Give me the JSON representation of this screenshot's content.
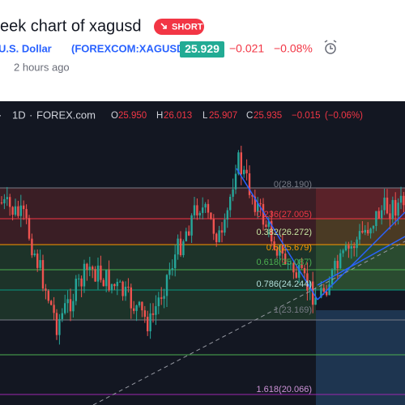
{
  "header": {
    "title": "eek chart of xagusd",
    "badge": "SHORT",
    "symbol_name": "U.S. Dollar",
    "symbol_code": "(FOREXCOM:XAGUSD)",
    "price": "25.929",
    "change": "−0.021",
    "change_pct": "−0.08%",
    "time": "2 hours ago"
  },
  "toolbar": {
    "interval": "1D",
    "source": "FOREX.com",
    "open_label": "O",
    "open": "25.950",
    "high_label": "H",
    "high": "26.013",
    "low_label": "L",
    "low": "25.907",
    "close_label": "C",
    "close": "25.935",
    "change": "−0.015",
    "change_pct": "(−0.06%)"
  },
  "fib_levels": [
    "0(28.190)",
    "0.236(27.005)",
    "0.382(26.272)",
    "0.5(25.679)",
    "0.618(25.087)",
    "0.786(24.244)",
    "1(23.169)",
    "1.618(20.066)"
  ]
}
